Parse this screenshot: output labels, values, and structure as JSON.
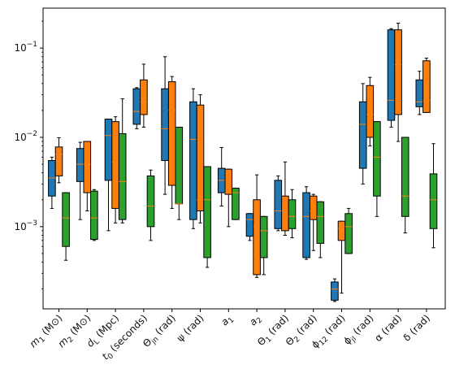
{
  "chart_data": {
    "type": "box",
    "yscale": "log",
    "ylim": [
      0.00012,
      0.28
    ],
    "y_ticks": [
      {
        "value": 0.001,
        "label": "10^-3"
      },
      {
        "value": 0.01,
        "label": "10^-2"
      },
      {
        "value": 0.1,
        "label": "10^-1"
      }
    ],
    "categories": [
      {
        "base": "m",
        "sub": "1",
        "unit": "(M⊙)"
      },
      {
        "base": "m",
        "sub": "2",
        "unit": "(M⊙)"
      },
      {
        "base": "d",
        "sub": "L",
        "unit": "(Mpc)"
      },
      {
        "base": "t",
        "sub": "0",
        "unit": "(seconds)"
      },
      {
        "base": "Θ",
        "sub": "jn",
        "unit": "(rad)"
      },
      {
        "base": "ψ",
        "sub": "",
        "unit": "(rad)"
      },
      {
        "base": "a",
        "sub": "1",
        "unit": ""
      },
      {
        "base": "a",
        "sub": "2",
        "unit": ""
      },
      {
        "base": "Θ",
        "sub": "1",
        "unit": "(rad)"
      },
      {
        "base": "Θ",
        "sub": "2",
        "unit": "(rad)"
      },
      {
        "base": "ϕ",
        "sub": "12",
        "unit": "(rad)"
      },
      {
        "base": "ϕ",
        "sub": "jl",
        "unit": "(rad)"
      },
      {
        "base": "α",
        "sub": "",
        "unit": "(rad)"
      },
      {
        "base": "δ",
        "sub": "",
        "unit": "(rad)"
      }
    ],
    "colors": [
      "#1f77b4",
      "#ff7f0e",
      "#2ca02c"
    ],
    "median_color": "#ff7f0e",
    "series": [
      {
        "boxes": [
          {
            "whislo": 0.0016,
            "q1": 0.0022,
            "med": 0.0035,
            "q3": 0.0055,
            "whishi": 0.006
          },
          {
            "whislo": 0.0012,
            "q1": 0.0032,
            "med": 0.005,
            "q3": 0.0075,
            "whishi": 0.0088
          },
          {
            "whislo": 0.0009,
            "q1": 0.0033,
            "med": 0.0105,
            "q3": 0.016,
            "whishi": 0.016
          },
          {
            "whislo": 0.0125,
            "q1": 0.014,
            "med": 0.0195,
            "q3": 0.035,
            "whishi": 0.036
          },
          {
            "whislo": 0.0023,
            "q1": 0.0055,
            "med": 0.0125,
            "q3": 0.035,
            "whishi": 0.08
          },
          {
            "whislo": 0.00095,
            "q1": 0.0012,
            "med": 0.0095,
            "q3": 0.025,
            "whishi": 0.035
          },
          {
            "whislo": 0.0017,
            "q1": 0.0024,
            "med": 0.0033,
            "q3": 0.0045,
            "whishi": 0.0077
          },
          {
            "whislo": 0.0007,
            "q1": 0.00078,
            "med": 0.0012,
            "q3": 0.0014,
            "whishi": 0.0014
          },
          {
            "whislo": 0.0009,
            "q1": 0.00095,
            "med": 0.0015,
            "q3": 0.0033,
            "whishi": 0.0037
          },
          {
            "whislo": 0.00043,
            "q1": 0.00045,
            "med": 0.0013,
            "q3": 0.0024,
            "whishi": 0.0028
          },
          {
            "whislo": 0.000145,
            "q1": 0.00015,
            "med": 0.0002,
            "q3": 0.00024,
            "whishi": 0.00026
          },
          {
            "whislo": 0.003,
            "q1": 0.0045,
            "med": 0.014,
            "q3": 0.025,
            "whishi": 0.04
          },
          {
            "whislo": 0.013,
            "q1": 0.0155,
            "med": 0.026,
            "q3": 0.16,
            "whishi": 0.165
          },
          {
            "whislo": 0.018,
            "q1": 0.022,
            "med": 0.025,
            "q3": 0.044,
            "whishi": 0.055
          }
        ]
      },
      {
        "boxes": [
          {
            "whislo": 0.0031,
            "q1": 0.0037,
            "med": 0.0065,
            "q3": 0.0078,
            "whishi": 0.0099
          },
          {
            "whislo": 0.0015,
            "q1": 0.0024,
            "med": 0.005,
            "q3": 0.009,
            "whishi": 0.009
          },
          {
            "whislo": 0.0011,
            "q1": 0.0016,
            "med": 0.0053,
            "q3": 0.015,
            "whishi": 0.017
          },
          {
            "whislo": 0.013,
            "q1": 0.018,
            "med": 0.025,
            "q3": 0.044,
            "whishi": 0.066
          },
          {
            "whislo": 0.0016,
            "q1": 0.0029,
            "med": 0.02,
            "q3": 0.042,
            "whishi": 0.048
          },
          {
            "whislo": 0.0011,
            "q1": 0.0015,
            "med": 0.002,
            "q3": 0.023,
            "whishi": 0.03
          },
          {
            "whislo": 0.001,
            "q1": 0.0023,
            "med": 0.0024,
            "q3": 0.0044,
            "whishi": 0.0044
          },
          {
            "whislo": 0.00027,
            "q1": 0.00029,
            "med": 0.001,
            "q3": 0.002,
            "whishi": 0.0038
          },
          {
            "whislo": 0.0008,
            "q1": 0.0009,
            "med": 0.0015,
            "q3": 0.0022,
            "whishi": 0.0053
          },
          {
            "whislo": 0.00054,
            "q1": 0.0012,
            "med": 0.0015,
            "q3": 0.0022,
            "whishi": 0.0023
          },
          {
            "whislo": 0.00018,
            "q1": 0.0007,
            "med": 0.00095,
            "q3": 0.00115,
            "whishi": 0.00115
          },
          {
            "whislo": 0.008,
            "q1": 0.01,
            "med": 0.018,
            "q3": 0.038,
            "whishi": 0.047
          },
          {
            "whislo": 0.009,
            "q1": 0.018,
            "med": 0.065,
            "q3": 0.16,
            "whishi": 0.19
          },
          {
            "whislo": 0.019,
            "q1": 0.019,
            "med": 0.026,
            "q3": 0.072,
            "whishi": 0.077
          }
        ]
      },
      {
        "boxes": [
          {
            "whislo": 0.00042,
            "q1": 0.0006,
            "med": 0.00125,
            "q3": 0.0024,
            "whishi": 0.0024
          },
          {
            "whislo": 0.0007,
            "q1": 0.00072,
            "med": 0.00125,
            "q3": 0.0025,
            "whishi": 0.0026
          },
          {
            "whislo": 0.0011,
            "q1": 0.0012,
            "med": 0.0032,
            "q3": 0.011,
            "whishi": 0.027
          },
          {
            "whislo": 0.0007,
            "q1": 0.001,
            "med": 0.0017,
            "q3": 0.0037,
            "whishi": 0.0043
          },
          {
            "whislo": 0.0012,
            "q1": 0.0018,
            "med": 0.0018,
            "q3": 0.013,
            "whishi": 0.013
          },
          {
            "whislo": 0.00035,
            "q1": 0.00045,
            "med": 0.002,
            "q3": 0.0047,
            "whishi": 0.0047
          },
          {
            "whislo": 0.0012,
            "q1": 0.0012,
            "med": 0.0024,
            "q3": 0.0027,
            "whishi": 0.0027
          },
          {
            "whislo": 0.00029,
            "q1": 0.00045,
            "med": 0.0009,
            "q3": 0.0013,
            "whishi": 0.0013
          },
          {
            "whislo": 0.00075,
            "q1": 0.00095,
            "med": 0.0013,
            "q3": 0.002,
            "whishi": 0.0026
          },
          {
            "whislo": 0.00045,
            "q1": 0.00065,
            "med": 0.0013,
            "q3": 0.0019,
            "whishi": 0.0019
          },
          {
            "whislo": 0.0005,
            "q1": 0.0005,
            "med": 0.001,
            "q3": 0.0014,
            "whishi": 0.0016
          },
          {
            "whislo": 0.0013,
            "q1": 0.0022,
            "med": 0.006,
            "q3": 0.015,
            "whishi": 0.015
          },
          {
            "whislo": 0.00085,
            "q1": 0.0013,
            "med": 0.0022,
            "q3": 0.01,
            "whishi": 0.01
          },
          {
            "whislo": 0.00058,
            "q1": 0.00095,
            "med": 0.002,
            "q3": 0.0039,
            "whishi": 0.0085
          }
        ]
      }
    ]
  }
}
